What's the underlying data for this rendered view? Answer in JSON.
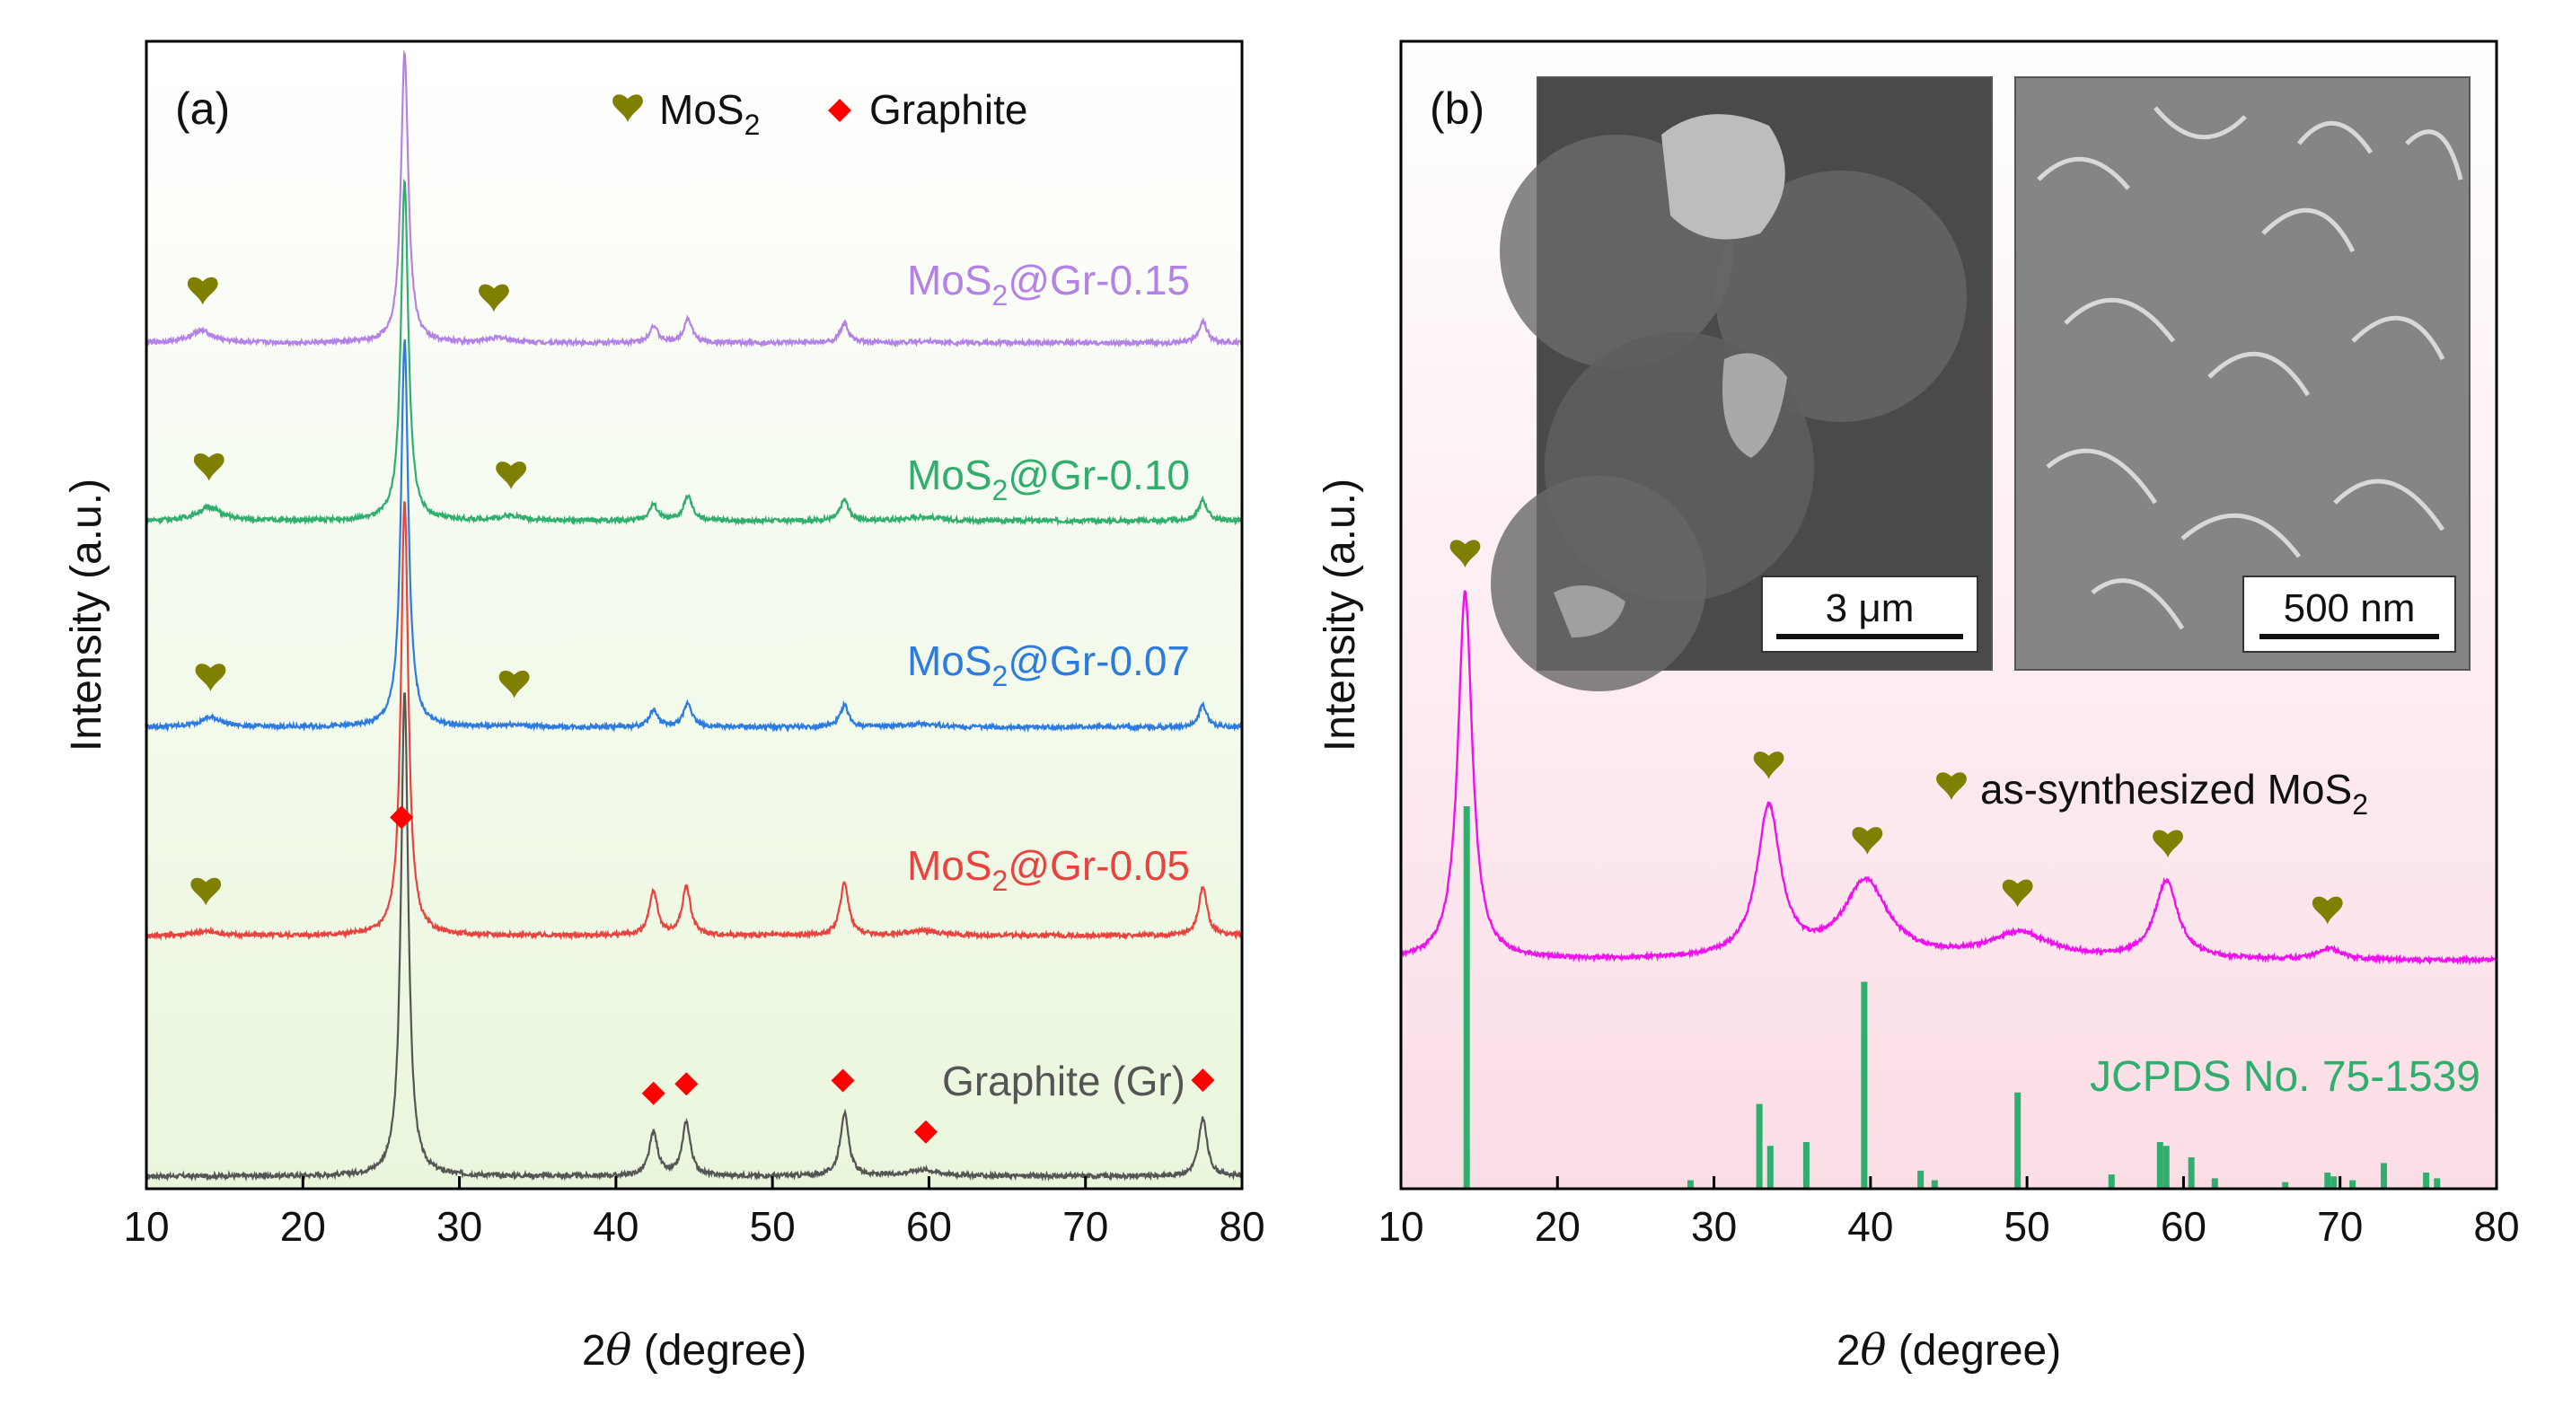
{
  "chart_data": [
    {
      "panel": "(a)",
      "type": "line",
      "xlabel_prefix": "2",
      "xlabel_var": "θ",
      "xlabel_suffix": " (degree)",
      "ylabel": "Intensity (a.u.)",
      "xlim": [
        10,
        80
      ],
      "xticks": [
        "10",
        "20",
        "30",
        "40",
        "50",
        "60",
        "70",
        "80"
      ],
      "legend": [
        {
          "marker": "heart",
          "label": "MoS",
          "sub": "2",
          "color": "#808000"
        },
        {
          "marker": "diamond",
          "label": "Graphite",
          "color": "#ff0000"
        }
      ],
      "series": [
        {
          "name": "Graphite (Gr)",
          "color": "#555555",
          "baseline": 0,
          "peaks": [
            {
              "x": 26.5,
              "h": 100
            },
            {
              "x": 42.4,
              "h": 9
            },
            {
              "x": 44.5,
              "h": 11
            },
            {
              "x": 54.6,
              "h": 13
            },
            {
              "x": 59.6,
              "h": 1.3
            },
            {
              "x": 77.5,
              "h": 12
            }
          ],
          "markers": [
            {
              "type": "diamond",
              "x": 26.3
            },
            {
              "type": "diamond",
              "x": 42.4
            },
            {
              "type": "diamond",
              "x": 44.5
            },
            {
              "type": "diamond",
              "x": 54.5
            },
            {
              "type": "diamond",
              "x": 59.8
            },
            {
              "type": "diamond",
              "x": 77.5
            }
          ]
        },
        {
          "name": "MoS2@Gr-0.05",
          "label": "MoS",
          "sub": "2",
          "suffix": "@Gr-0.05",
          "color": "#e8433f",
          "baseline": 11,
          "peaks": [
            {
              "x": 13.8,
              "h": 0.8
            },
            {
              "x": 26.5,
              "h": 90
            },
            {
              "x": 42.4,
              "h": 9
            },
            {
              "x": 44.5,
              "h": 10
            },
            {
              "x": 54.6,
              "h": 11
            },
            {
              "x": 59.6,
              "h": 1
            },
            {
              "x": 77.5,
              "h": 10
            }
          ],
          "markers": [
            {
              "type": "heart",
              "x": 13.8
            }
          ]
        },
        {
          "name": "MoS2@Gr-0.07",
          "label": "MoS",
          "sub": "2",
          "suffix": "@Gr-0.07",
          "color": "#2e7be0",
          "baseline": 22,
          "peaks": [
            {
              "x": 14.1,
              "h": 2
            },
            {
              "x": 26.5,
              "h": 80
            },
            {
              "x": 33.5,
              "h": 0.5
            },
            {
              "x": 42.4,
              "h": 3.5
            },
            {
              "x": 44.6,
              "h": 5
            },
            {
              "x": 54.6,
              "h": 4.5
            },
            {
              "x": 59.6,
              "h": 0.7
            },
            {
              "x": 77.5,
              "h": 4.5
            }
          ],
          "markers": [
            {
              "type": "heart",
              "x": 14.1
            },
            {
              "type": "heart",
              "x": 33.5
            }
          ]
        },
        {
          "name": "MoS2@Gr-0.10",
          "label": "MoS",
          "sub": "2",
          "suffix": "@Gr-0.10",
          "color": "#2fae6e",
          "baseline": 33,
          "peaks": [
            {
              "x": 14.0,
              "h": 2.8
            },
            {
              "x": 26.5,
              "h": 70
            },
            {
              "x": 33.3,
              "h": 1
            },
            {
              "x": 42.4,
              "h": 3.3
            },
            {
              "x": 44.6,
              "h": 5
            },
            {
              "x": 54.6,
              "h": 4.3
            },
            {
              "x": 59.6,
              "h": 0.8
            },
            {
              "x": 77.5,
              "h": 4.3
            }
          ],
          "markers": [
            {
              "type": "heart",
              "x": 14.0
            },
            {
              "type": "heart",
              "x": 33.3
            }
          ]
        },
        {
          "name": "MoS2@Gr-0.15",
          "label": "MoS",
          "sub": "2",
          "suffix": "@Gr-0.15",
          "color": "#b482e6",
          "baseline": 44,
          "peaks": [
            {
              "x": 13.5,
              "h": 2.5
            },
            {
              "x": 26.5,
              "h": 60
            },
            {
              "x": 32.5,
              "h": 1
            },
            {
              "x": 42.4,
              "h": 3.5
            },
            {
              "x": 44.6,
              "h": 5
            },
            {
              "x": 54.6,
              "h": 4
            },
            {
              "x": 59.6,
              "h": 0.3
            },
            {
              "x": 77.5,
              "h": 4.5
            }
          ],
          "markers": [
            {
              "type": "heart",
              "x": 13.6
            },
            {
              "type": "heart",
              "x": 32.2
            }
          ]
        }
      ]
    },
    {
      "panel": "(b)",
      "type": "line",
      "xlabel_prefix": "2",
      "xlabel_var": "θ",
      "xlabel_suffix": " (degree)",
      "ylabel": "Intensity (a.u.)",
      "xlim": [
        10,
        80
      ],
      "xticks": [
        "10",
        "20",
        "30",
        "40",
        "50",
        "60",
        "70",
        "80"
      ],
      "series": [
        {
          "name": "as-synthesized MoS2",
          "label": "as-synthesized MoS",
          "sub": "2",
          "color": "#ee11ee",
          "baseline": 0,
          "peaks": [
            {
              "x": 14.1,
              "h": 100
            },
            {
              "x": 33.5,
              "h": 41
            },
            {
              "x": 39.7,
              "h": 21
            },
            {
              "x": 49.5,
              "h": 7
            },
            {
              "x": 58.9,
              "h": 21
            },
            {
              "x": 69.3,
              "h": 3
            }
          ],
          "markers": [
            {
              "type": "heart",
              "x": 14.1
            },
            {
              "type": "heart",
              "x": 33.5
            },
            {
              "type": "heart",
              "x": 39.8
            },
            {
              "type": "heart",
              "x": 49.4
            },
            {
              "type": "heart",
              "x": 59.0
            },
            {
              "type": "heart",
              "x": 69.2
            }
          ]
        }
      ],
      "reference": {
        "label": "JCPDS No. 75-1539",
        "color": "#2fae6e",
        "lines": [
          {
            "x": 14.2,
            "h": 100
          },
          {
            "x": 28.5,
            "h": 2
          },
          {
            "x": 32.9,
            "h": 22
          },
          {
            "x": 33.6,
            "h": 11
          },
          {
            "x": 35.9,
            "h": 12
          },
          {
            "x": 39.6,
            "h": 54
          },
          {
            "x": 43.2,
            "h": 4.5
          },
          {
            "x": 44.1,
            "h": 2
          },
          {
            "x": 49.4,
            "h": 25
          },
          {
            "x": 55.4,
            "h": 3.5
          },
          {
            "x": 58.5,
            "h": 12
          },
          {
            "x": 58.9,
            "h": 11
          },
          {
            "x": 60.5,
            "h": 8
          },
          {
            "x": 62.0,
            "h": 2.5
          },
          {
            "x": 66.5,
            "h": 1.5
          },
          {
            "x": 69.2,
            "h": 4
          },
          {
            "x": 69.6,
            "h": 3
          },
          {
            "x": 70.8,
            "h": 2
          },
          {
            "x": 72.8,
            "h": 6.5
          },
          {
            "x": 75.5,
            "h": 4
          },
          {
            "x": 76.2,
            "h": 2.5
          }
        ]
      },
      "insets": [
        {
          "scale_label": "3 μm"
        },
        {
          "scale_label": "500 nm"
        }
      ]
    }
  ]
}
